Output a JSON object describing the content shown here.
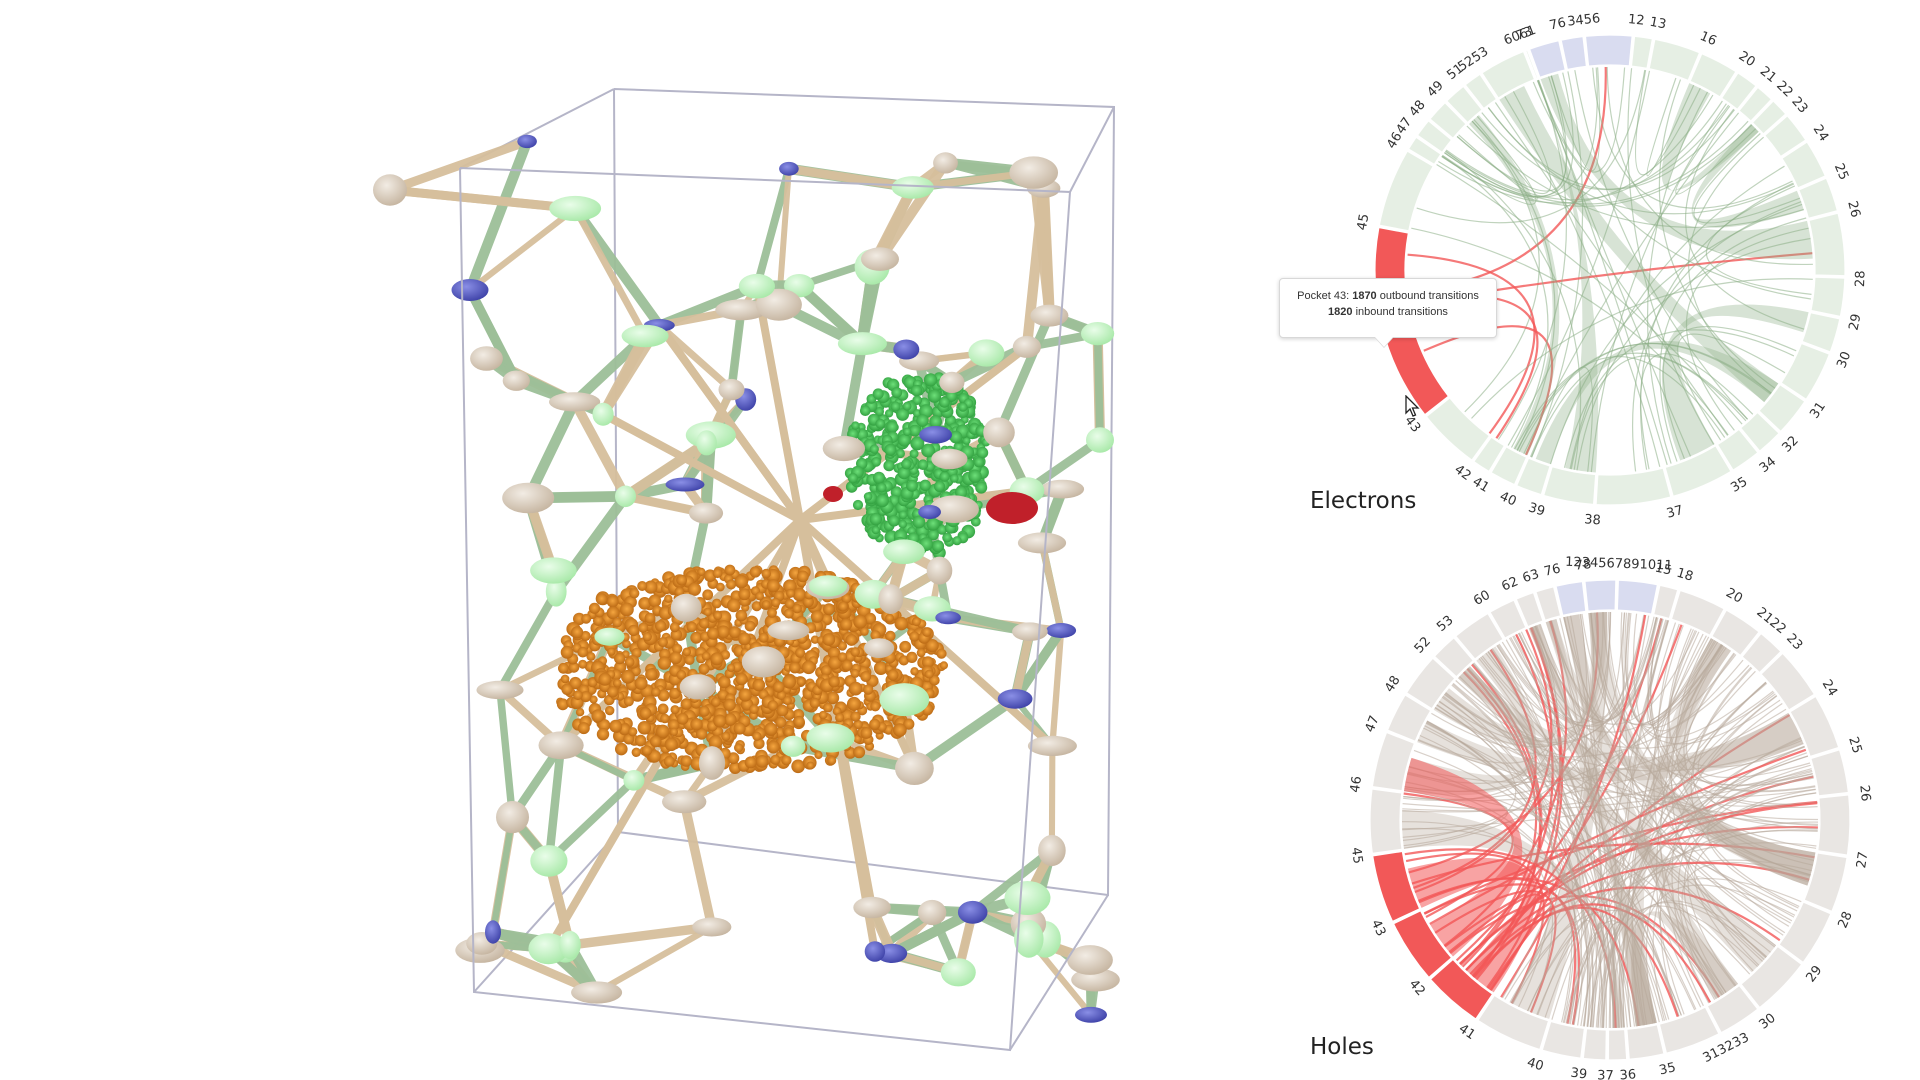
{
  "panels": {
    "electrons_title": "Electrons",
    "holes_title": "Holes"
  },
  "tooltip": {
    "prefix": "Pocket 43:",
    "outbound_value": "1870",
    "outbound_label": "outbound transitions",
    "inbound_value": "1820",
    "inbound_label": "inbound transitions"
  },
  "colors": {
    "highlight": "#f25858",
    "electron_ring": "#e6efe4",
    "electron_ring_blue": "#d9dcf0",
    "hole_ring": "#e9e6e3",
    "hole_chord": "#b8aa9c",
    "electron_chord": "#8cae86",
    "green_cluster": "#3ec44f",
    "orange_cluster": "#e28a1e",
    "tube_tan": "#d6bf9c",
    "tube_green": "#9dbf98",
    "node_blue": "#5a5fc4",
    "node_green": "#c8f5c8",
    "node_red": "#c0202a",
    "box": "#b5b5c8"
  },
  "electrons_ticks": [
    {
      "label": "73",
      "a": -20
    },
    {
      "label": "76",
      "a": -12
    },
    {
      "label": "3456",
      "a": -6
    },
    {
      "label": "12",
      "a": 6
    },
    {
      "label": "13",
      "a": 11
    },
    {
      "label": "16",
      "a": 23
    },
    {
      "label": "20",
      "a": 33
    },
    {
      "label": "21",
      "a": 39
    },
    {
      "label": "22",
      "a": 44
    },
    {
      "label": "23",
      "a": 49
    },
    {
      "label": "24",
      "a": 57
    },
    {
      "label": "25",
      "a": 67
    },
    {
      "label": "26",
      "a": 76
    },
    {
      "label": "28",
      "a": 92
    },
    {
      "label": "29",
      "a": 102
    },
    {
      "label": "30",
      "a": 111
    },
    {
      "label": "31",
      "a": 124
    },
    {
      "label": "32",
      "a": 134
    },
    {
      "label": "34",
      "a": 141
    },
    {
      "label": "35",
      "a": 149
    },
    {
      "label": "37",
      "a": 165
    },
    {
      "label": "38",
      "a": 184
    },
    {
      "label": "39",
      "a": 197
    },
    {
      "label": "40",
      "a": 204
    },
    {
      "label": "41",
      "a": 211
    },
    {
      "label": "42",
      "a": 216
    },
    {
      "label": "43",
      "a": 232
    },
    {
      "label": "45",
      "a": 281
    },
    {
      "label": "46",
      "a": 301
    },
    {
      "label": "47",
      "a": 305
    },
    {
      "label": "48",
      "a": 310
    },
    {
      "label": "49",
      "a": 316
    },
    {
      "label": "51",
      "a": 322
    },
    {
      "label": "5253",
      "a": 327
    },
    {
      "label": "6061",
      "a": 339
    }
  ],
  "holes_ticks": [
    {
      "label": "76",
      "a": -13
    },
    {
      "label": "78",
      "a": -6
    },
    {
      "label": "1234567891011",
      "a": 2
    },
    {
      "label": "15",
      "a": 12
    },
    {
      "label": "18",
      "a": 17
    },
    {
      "label": "20",
      "a": 29
    },
    {
      "label": "2122",
      "a": 39
    },
    {
      "label": "23",
      "a": 46
    },
    {
      "label": "24",
      "a": 59
    },
    {
      "label": "25",
      "a": 73
    },
    {
      "label": "26",
      "a": 84
    },
    {
      "label": "27",
      "a": 99
    },
    {
      "label": "28",
      "a": 113
    },
    {
      "label": "29",
      "a": 127
    },
    {
      "label": "30",
      "a": 142
    },
    {
      "label": "313233",
      "a": 153
    },
    {
      "label": "35",
      "a": 167
    },
    {
      "label": "36",
      "a": 176
    },
    {
      "label": "37",
      "a": 181
    },
    {
      "label": "39",
      "a": 187
    },
    {
      "label": "40",
      "a": 197
    },
    {
      "label": "41",
      "a": 214
    },
    {
      "label": "42",
      "a": 229
    },
    {
      "label": "43",
      "a": 245
    },
    {
      "label": "45",
      "a": 262
    },
    {
      "label": "46",
      "a": 278
    },
    {
      "label": "47",
      "a": 292
    },
    {
      "label": "48",
      "a": 302
    },
    {
      "label": "52",
      "a": 313
    },
    {
      "label": "53",
      "a": 320
    },
    {
      "label": "60",
      "a": 330
    },
    {
      "label": "62",
      "a": 337
    },
    {
      "label": "63",
      "a": 342
    }
  ]
}
